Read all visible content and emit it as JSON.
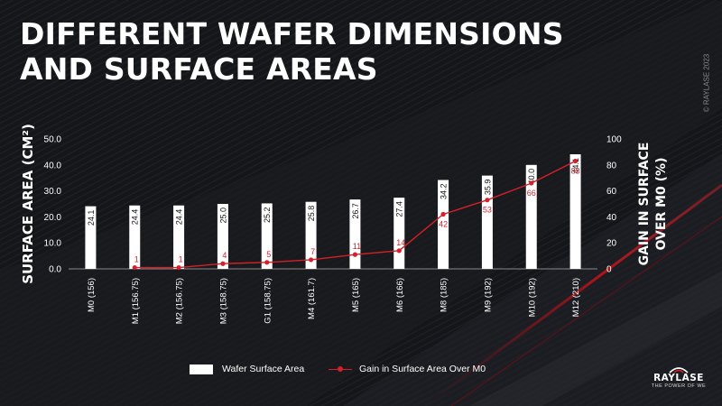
{
  "slide": {
    "title_line1": "DIFFERENT WAFER DIMENSIONS",
    "title_line2": "AND SURFACE AREAS",
    "copyright": "© RAYLASE 2023"
  },
  "logo": {
    "name": "RAYLASE",
    "tagline": "THE POWER OF WE"
  },
  "colors": {
    "background": "#16171a",
    "bar": "#ffffff",
    "line": "#d4202a",
    "text": "#ffffff"
  },
  "chart_data": {
    "type": "bar",
    "title": "",
    "categories": [
      "M0 (156)",
      "M1 (156.75)",
      "M2 (156.75)",
      "M3 (158.75)",
      "G1 (158.75)",
      "M4 (161.7)",
      "M5 (165)",
      "M6 (166)",
      "M8 (185)",
      "M9 (192)",
      "M10 (192)",
      "M12 (210)"
    ],
    "series": [
      {
        "name": "Wafer Surface Area",
        "type": "bar",
        "axis": "left",
        "values": [
          24.1,
          24.4,
          24.4,
          25.0,
          25.2,
          25.8,
          26.7,
          27.4,
          34.2,
          35.9,
          40.0,
          44.1
        ],
        "labels": [
          "24.1",
          "24.4",
          "24.4",
          "25.0",
          "25.2",
          "25.8",
          "26.7",
          "27.4",
          "34.2",
          "35.9",
          "40.0",
          "44.1"
        ]
      },
      {
        "name": "Gain in Surface Area Over M0",
        "type": "line",
        "axis": "right",
        "values": [
          null,
          1,
          1,
          4,
          5,
          7,
          11,
          14,
          42,
          53,
          66,
          83
        ],
        "labels": [
          "",
          "1",
          "1",
          "4",
          "5",
          "7",
          "11",
          "14",
          "42",
          "53",
          "66",
          "83"
        ]
      }
    ],
    "ylabel": "SURFACE AREA (CM²)",
    "y2label_line1": "GAIN IN SURFACE",
    "y2label_line2": "OVER M0 (%)",
    "ylim": [
      0,
      50
    ],
    "y2lim": [
      0,
      100
    ],
    "yticks": [
      "0.0",
      "10.0",
      "20.0",
      "30.0",
      "40.0",
      "50.0"
    ],
    "y2ticks": [
      "0",
      "20",
      "40",
      "60",
      "80",
      "100"
    ],
    "grid": false,
    "legend_position": "bottom"
  }
}
